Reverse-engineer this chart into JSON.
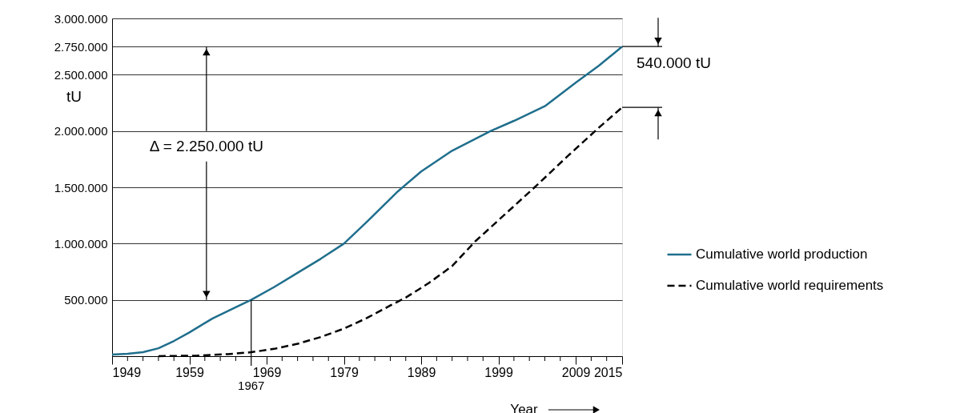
{
  "chart_data": {
    "type": "line",
    "xlabel": "Year",
    "ylabel": "tU",
    "xlim": [
      1949,
      2015
    ],
    "ylim": [
      0,
      3000000
    ],
    "xticks": [
      1949,
      {
        "value": 1951,
        "label": null
      },
      {
        "value": 1953,
        "label": null
      },
      {
        "value": 1955,
        "label": null
      },
      {
        "value": 1957,
        "label": null
      },
      1959,
      {
        "value": 1961,
        "label": null
      },
      {
        "value": 1963,
        "label": null
      },
      {
        "value": 1965,
        "label": null
      },
      1969,
      {
        "value": 1971,
        "label": null
      },
      {
        "value": 1973,
        "label": null
      },
      {
        "value": 1975,
        "label": null
      },
      {
        "value": 1977,
        "label": null
      },
      1979,
      {
        "value": 1981,
        "label": null
      },
      {
        "value": 1983,
        "label": null
      },
      {
        "value": 1985,
        "label": null
      },
      {
        "value": 1987,
        "label": null
      },
      1989,
      {
        "value": 1991,
        "label": null
      },
      {
        "value": 1993,
        "label": null
      },
      {
        "value": 1995,
        "label": null
      },
      {
        "value": 1997,
        "label": null
      },
      1999,
      {
        "value": 2001,
        "label": null
      },
      {
        "value": 2003,
        "label": null
      },
      {
        "value": 2005,
        "label": null
      },
      {
        "value": 2007,
        "label": null
      },
      2009,
      {
        "value": 2011,
        "label": null
      },
      {
        "value": 2013,
        "label": null
      },
      2015
    ],
    "yticks": [
      {
        "value": 500000,
        "label": "500.000"
      },
      {
        "value": 1000000,
        "label": "1.000.000"
      },
      {
        "value": 1500000,
        "label": "1.500.000"
      },
      {
        "value": 2000000,
        "label": "2.000.000"
      },
      {
        "value": 2500000,
        "label": "2.500.000"
      },
      {
        "value": 2750000,
        "label": "2.750.000"
      },
      {
        "value": 3000000,
        "label": "3.000.000"
      }
    ],
    "grid": "y",
    "legend": "right",
    "series": [
      {
        "name": "Cumulative world production",
        "color": "#1f6e8c",
        "line_style": "solid",
        "x": [
          1949,
          1951,
          1953,
          1955,
          1957,
          1959,
          1962,
          1965,
          1967,
          1970,
          1973,
          1976,
          1979,
          1982,
          1986,
          1989,
          1993,
          1998,
          2001,
          2005,
          2009,
          2012,
          2015
        ],
        "values": [
          15000,
          22000,
          35000,
          70000,
          135000,
          211000,
          335000,
          435000,
          500000,
          615000,
          740000,
          865000,
          1000000,
          1195000,
          1465000,
          1640000,
          1825000,
          2000000,
          2090000,
          2220000,
          2430000,
          2580000,
          2750000
        ]
      },
      {
        "name": "Cumulative world requirements",
        "color": "#000000",
        "line_style": "dashed",
        "x": [
          1955,
          1960,
          1964,
          1967,
          1970,
          1973,
          1976,
          1979,
          1982,
          1985,
          1987,
          1990,
          1993,
          1996,
          2000,
          2004,
          2008,
          2012,
          2015
        ],
        "values": [
          0,
          5000,
          18000,
          35000,
          65000,
          110000,
          170000,
          245000,
          340000,
          450000,
          520000,
          650000,
          800000,
          1020000,
          1270000,
          1520000,
          1780000,
          2030000,
          2210000
        ]
      }
    ],
    "annotations": [
      "Δ = 2.250.000 tU",
      "540.000 tU",
      {
        "text": "1967",
        "x": 1967,
        "y": 500000
      }
    ]
  }
}
